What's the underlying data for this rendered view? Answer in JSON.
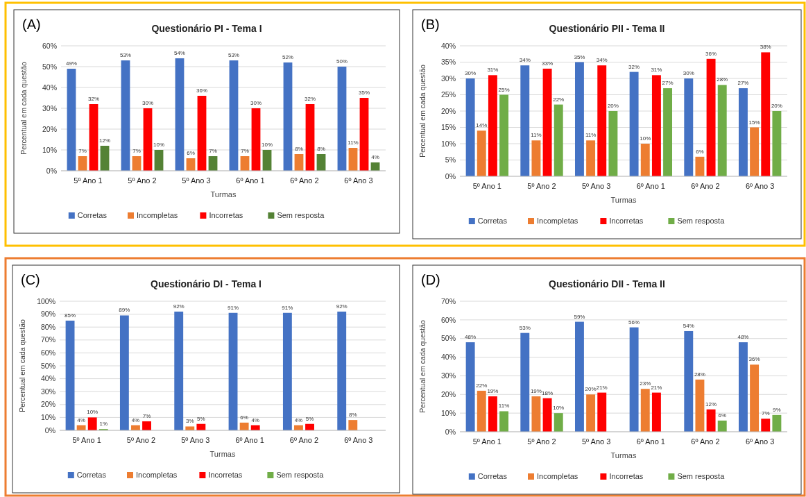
{
  "chart_data": [
    {
      "type": "bar",
      "title": "Questionário PI - Tema I",
      "xlabel": "Turmas",
      "ylabel": "Percentual em cada questão",
      "annotations": [
        "(A)"
      ],
      "categories": [
        "5º Ano 1",
        "5º Ano 2",
        "5º Ano 3",
        "6º Ano 1",
        "6º Ano 2",
        "6º Ano 3"
      ],
      "ylim": [
        0,
        60
      ],
      "yticks": [
        {
          "value": 0,
          "label": "0%"
        },
        {
          "value": 10,
          "label": "10%"
        },
        {
          "value": 20,
          "label": "20%"
        },
        {
          "value": 30,
          "label": "30%"
        },
        {
          "value": 40,
          "label": "40%"
        },
        {
          "value": 50,
          "label": "50%"
        },
        {
          "value": 60,
          "label": "60%"
        }
      ],
      "grid": "y",
      "legend": "bottom",
      "series": [
        {
          "name": "Corretas",
          "color": "#4472c4",
          "values": [
            49,
            53,
            54,
            53,
            52,
            50
          ],
          "value_labels": [
            "49%",
            "53%",
            "54%",
            "53%",
            "52%",
            "50%"
          ]
        },
        {
          "name": "Incompletas",
          "color": "#ed7d31",
          "values": [
            7,
            7,
            6,
            7,
            8,
            11
          ],
          "value_labels": [
            "7%",
            "7%",
            "6%",
            "7%",
            "8%",
            "11%"
          ]
        },
        {
          "name": "Incorretas",
          "color": "#ff0000",
          "values": [
            32,
            30,
            36,
            30,
            32,
            35
          ],
          "value_labels": [
            "32%",
            "30%",
            "36%",
            "30%",
            "32%",
            "35%"
          ]
        },
        {
          "name": "Sem resposta",
          "color": "#548235",
          "values": [
            12,
            10,
            7,
            10,
            8,
            4
          ],
          "value_labels": [
            "12%",
            "10%",
            "7%",
            "10%",
            "8%",
            "4%"
          ]
        }
      ]
    },
    {
      "type": "bar",
      "title": "Questionário PII - Tema II",
      "xlabel": "Turmas",
      "ylabel": "Percentual em cada questão",
      "annotations": [
        "(B)"
      ],
      "categories": [
        "5º Ano 1",
        "5º Ano 2",
        "5º Ano 3",
        "6º Ano 1",
        "6º Ano 2",
        "6º Ano 3"
      ],
      "ylim": [
        0,
        40
      ],
      "yticks": [
        {
          "value": 0,
          "label": "0%"
        },
        {
          "value": 5,
          "label": "5%"
        },
        {
          "value": 10,
          "label": "10%"
        },
        {
          "value": 15,
          "label": "15%"
        },
        {
          "value": 20,
          "label": "20%"
        },
        {
          "value": 25,
          "label": "25%"
        },
        {
          "value": 30,
          "label": "30%"
        },
        {
          "value": 35,
          "label": "35%"
        },
        {
          "value": 40,
          "label": "40%"
        }
      ],
      "grid": "y",
      "legend": "bottom",
      "series": [
        {
          "name": "Corretas",
          "color": "#4472c4",
          "values": [
            30,
            34,
            35,
            32,
            30,
            27
          ],
          "value_labels": [
            "30%",
            "34%",
            "35%",
            "32%",
            "30%",
            "27%"
          ]
        },
        {
          "name": "Incompletas",
          "color": "#ed7d31",
          "values": [
            14,
            11,
            11,
            10,
            6,
            15
          ],
          "value_labels": [
            "14%",
            "11%",
            "11%",
            "10%",
            "6%",
            "15%"
          ]
        },
        {
          "name": "Incorretas",
          "color": "#ff0000",
          "values": [
            31,
            33,
            34,
            31,
            36,
            38
          ],
          "value_labels": [
            "31%",
            "33%",
            "34%",
            "31%",
            "36%",
            "38%"
          ]
        },
        {
          "name": "Sem resposta",
          "color": "#70ad47",
          "values": [
            25,
            22,
            20,
            27,
            28,
            20
          ],
          "value_labels": [
            "25%",
            "22%",
            "20%",
            "27%",
            "28%",
            "20%"
          ]
        }
      ]
    },
    {
      "type": "bar",
      "title": "Questionário DI - Tema I",
      "xlabel": "Turmas",
      "ylabel": "Percentual em cada questão",
      "annotations": [
        "(C)"
      ],
      "categories": [
        "5º Ano 1",
        "5º Ano 2",
        "5º Ano 3",
        "6º Ano 1",
        "6º Ano 2",
        "6º Ano 3"
      ],
      "ylim": [
        0,
        100
      ],
      "yticks": [
        {
          "value": 0,
          "label": "0%"
        },
        {
          "value": 10,
          "label": "10%"
        },
        {
          "value": 20,
          "label": "20%"
        },
        {
          "value": 30,
          "label": "30%"
        },
        {
          "value": 40,
          "label": "40%"
        },
        {
          "value": 50,
          "label": "50%"
        },
        {
          "value": 60,
          "label": "60%"
        },
        {
          "value": 70,
          "label": "70%"
        },
        {
          "value": 80,
          "label": "80%"
        },
        {
          "value": 90,
          "label": "90%"
        },
        {
          "value": 100,
          "label": "100%"
        }
      ],
      "grid": "y",
      "legend": "bottom",
      "series": [
        {
          "name": "Corretas",
          "color": "#4472c4",
          "values": [
            85,
            89,
            92,
            91,
            91,
            92
          ],
          "value_labels": [
            "85%",
            "89%",
            "92%",
            "91%",
            "91%",
            "92%"
          ]
        },
        {
          "name": "Incompletas",
          "color": "#ed7d31",
          "values": [
            4,
            4,
            3,
            6,
            4,
            8
          ],
          "value_labels": [
            "4%",
            "4%",
            "3%",
            "6%",
            "4%",
            "8%"
          ]
        },
        {
          "name": "Incorretas",
          "color": "#ff0000",
          "values": [
            10,
            7,
            5,
            4,
            5,
            null
          ],
          "value_labels": [
            "10%",
            "7%",
            "5%",
            "4%",
            "5%",
            null
          ]
        },
        {
          "name": "Sem resposta",
          "color": "#70ad47",
          "values": [
            1,
            null,
            null,
            null,
            null,
            null
          ],
          "value_labels": [
            "1%",
            null,
            null,
            null,
            null,
            null
          ]
        }
      ]
    },
    {
      "type": "bar",
      "title": "Questionário DII - Tema II",
      "xlabel": "Turmas",
      "ylabel": "Percentual em cada questão",
      "annotations": [
        "(D)"
      ],
      "categories": [
        "5º Ano 1",
        "5º Ano 2",
        "5º Ano 3",
        "6º Ano 1",
        "6º Ano 2",
        "6º Ano 3"
      ],
      "ylim": [
        0,
        70
      ],
      "yticks": [
        {
          "value": 0,
          "label": "0%"
        },
        {
          "value": 10,
          "label": "10%"
        },
        {
          "value": 20,
          "label": "20%"
        },
        {
          "value": 30,
          "label": "30%"
        },
        {
          "value": 40,
          "label": "40%"
        },
        {
          "value": 50,
          "label": "50%"
        },
        {
          "value": 60,
          "label": "60%"
        },
        {
          "value": 70,
          "label": "70%"
        }
      ],
      "grid": "y",
      "legend": "bottom",
      "series": [
        {
          "name": "Corretas",
          "color": "#4472c4",
          "values": [
            48,
            53,
            59,
            56,
            54,
            48
          ],
          "value_labels": [
            "48%",
            "53%",
            "59%",
            "56%",
            "54%",
            "48%"
          ]
        },
        {
          "name": "Incompletas",
          "color": "#ed7d31",
          "values": [
            22,
            19,
            20,
            23,
            28,
            36
          ],
          "value_labels": [
            "22%",
            "19%",
            "20%",
            "23%",
            "28%",
            "36%"
          ]
        },
        {
          "name": "Incorretas",
          "color": "#ff0000",
          "values": [
            19,
            18,
            21,
            21,
            12,
            7
          ],
          "value_labels": [
            "19%",
            "18%",
            "21%",
            "21%",
            "12%",
            "7%"
          ]
        },
        {
          "name": "Sem resposta",
          "color": "#70ad47",
          "values": [
            11,
            10,
            null,
            null,
            6,
            9
          ],
          "value_labels": [
            "11%",
            "10%",
            null,
            null,
            "6%",
            "9%"
          ]
        }
      ]
    }
  ]
}
